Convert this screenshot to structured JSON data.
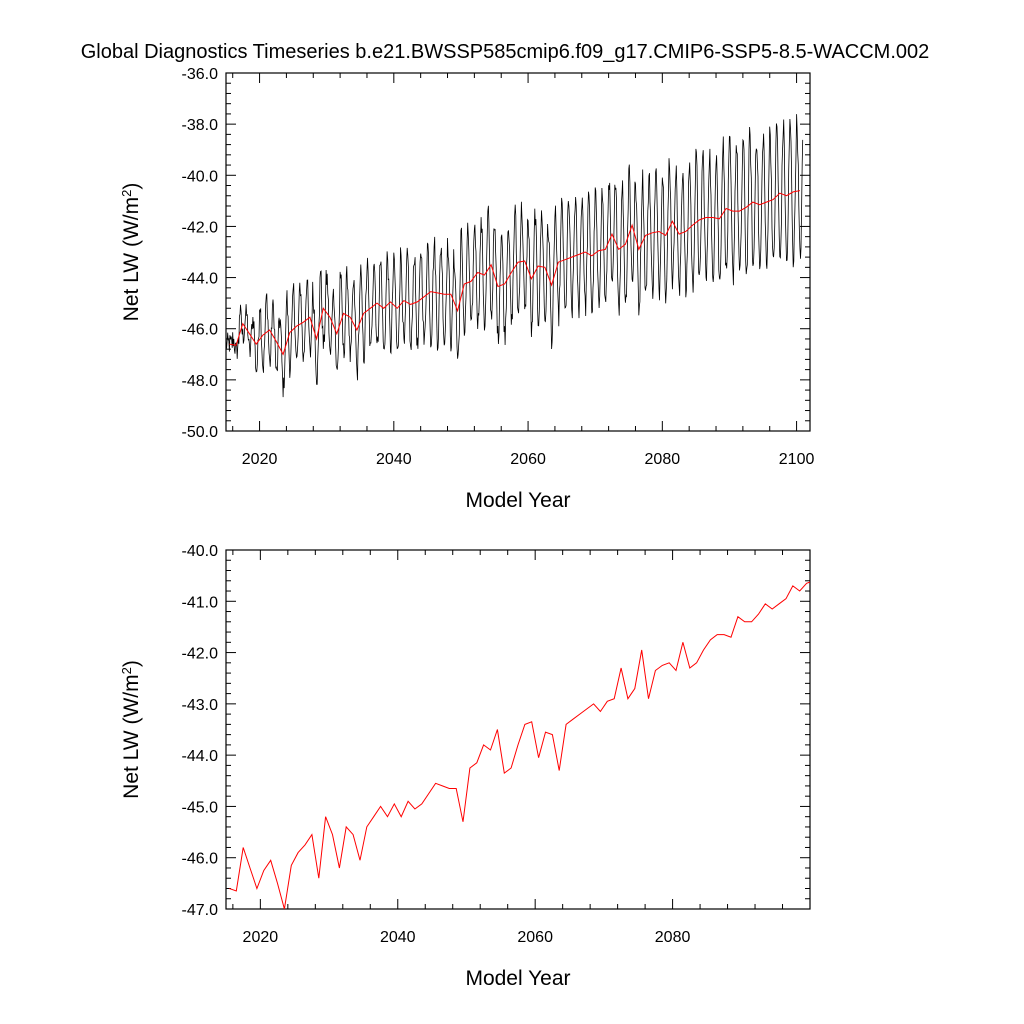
{
  "title": "Global Diagnostics Timeseries b.e21.BWSSP585cmip6.f09_g17.CMIP6-SSP5-8.5-WACCM.002",
  "chart_data": [
    {
      "type": "line",
      "title": "Global Diagnostics Timeseries b.e21.BWSSP585cmip6.f09_g17.CMIP6-SSP5-8.5-WACCM.002",
      "xlabel": "Model Year",
      "ylabel_main": "Net LW (W/m",
      "ylabel_sup": "2",
      "ylabel_close": ")",
      "xlim": [
        2015,
        2102
      ],
      "ylim": [
        -50,
        -36
      ],
      "x_ticks": [
        2020,
        2040,
        2060,
        2080,
        2100
      ],
      "y_ticks": [
        -50,
        -48,
        -46,
        -44,
        -42,
        -40,
        -38,
        -36
      ],
      "y_tick_labels": [
        "-50.0",
        "-48.0",
        "-46.0",
        "-44.0",
        "-42.0",
        "-40.0",
        "-38.0",
        "-36.0"
      ],
      "monthly_series": {
        "color": "#000000",
        "start_year": 2015,
        "annual_swing_points": [
          [
            2015,
            0
          ],
          [
            2020,
            2.3
          ],
          [
            2030,
            2.8
          ],
          [
            2040,
            3.3
          ],
          [
            2050,
            3.5
          ],
          [
            2060,
            3.8
          ],
          [
            2070,
            4.0
          ],
          [
            2080,
            4.3
          ],
          [
            2090,
            4.7
          ],
          [
            2100,
            4.9
          ]
        ]
      },
      "annual_series": {
        "color": "#ff0000",
        "x_start": 2015,
        "values": [
          -46.6,
          -46.65,
          -45.8,
          -46.2,
          -46.6,
          -46.25,
          -46.05,
          -46.5,
          -47.0,
          -46.15,
          -45.9,
          -45.75,
          -45.55,
          -46.4,
          -45.2,
          -45.55,
          -46.2,
          -45.4,
          -45.55,
          -46.05,
          -45.4,
          -45.2,
          -45.0,
          -45.2,
          -44.95,
          -45.2,
          -44.9,
          -45.05,
          -44.95,
          -44.75,
          -44.55,
          -44.6,
          -44.65,
          -44.65,
          -45.3,
          -44.25,
          -44.15,
          -43.8,
          -43.9,
          -43.5,
          -44.35,
          -44.25,
          -43.8,
          -43.4,
          -43.35,
          -44.05,
          -43.55,
          -43.6,
          -44.3,
          -43.4,
          -43.3,
          -43.2,
          -43.1,
          -43.0,
          -43.15,
          -42.95,
          -42.9,
          -42.3,
          -42.9,
          -42.7,
          -41.95,
          -42.9,
          -42.35,
          -42.25,
          -42.2,
          -42.35,
          -41.8,
          -42.3,
          -42.2,
          -41.95,
          -41.75,
          -41.65,
          -41.65,
          -41.7,
          -41.3,
          -41.4,
          -41.4,
          -41.25,
          -41.05,
          -41.15,
          -41.05,
          -40.95,
          -40.7,
          -40.8,
          -40.65,
          -40.6
        ]
      }
    },
    {
      "type": "line",
      "xlabel": "Model Year",
      "ylabel_main": "Net LW (W/m",
      "ylabel_sup": "2",
      "ylabel_close": ")",
      "xlim": [
        2015,
        2100
      ],
      "ylim": [
        -47,
        -40
      ],
      "x_ticks": [
        2020,
        2040,
        2060,
        2080
      ],
      "y_ticks": [
        -47,
        -46,
        -45,
        -44,
        -43,
        -42,
        -41,
        -40
      ],
      "y_tick_labels": [
        "-47.0",
        "-46.0",
        "-45.0",
        "-44.0",
        "-43.0",
        "-42.0",
        "-41.0",
        "-40.0"
      ],
      "annual_series": {
        "color": "#ff0000",
        "x_start": 2015,
        "values": [
          -46.6,
          -46.65,
          -45.8,
          -46.2,
          -46.6,
          -46.25,
          -46.05,
          -46.5,
          -47.0,
          -46.15,
          -45.9,
          -45.75,
          -45.55,
          -46.4,
          -45.2,
          -45.55,
          -46.2,
          -45.4,
          -45.55,
          -46.05,
          -45.4,
          -45.2,
          -45.0,
          -45.2,
          -44.95,
          -45.2,
          -44.9,
          -45.05,
          -44.95,
          -44.75,
          -44.55,
          -44.6,
          -44.65,
          -44.65,
          -45.3,
          -44.25,
          -44.15,
          -43.8,
          -43.9,
          -43.5,
          -44.35,
          -44.25,
          -43.8,
          -43.4,
          -43.35,
          -44.05,
          -43.55,
          -43.6,
          -44.3,
          -43.4,
          -43.3,
          -43.2,
          -43.1,
          -43.0,
          -43.15,
          -42.95,
          -42.9,
          -42.3,
          -42.9,
          -42.7,
          -41.95,
          -42.9,
          -42.35,
          -42.25,
          -42.2,
          -42.35,
          -41.8,
          -42.3,
          -42.2,
          -41.95,
          -41.75,
          -41.65,
          -41.65,
          -41.7,
          -41.3,
          -41.4,
          -41.4,
          -41.25,
          -41.05,
          -41.15,
          -41.05,
          -40.95,
          -40.7,
          -40.8,
          -40.65,
          -40.6
        ]
      }
    }
  ]
}
